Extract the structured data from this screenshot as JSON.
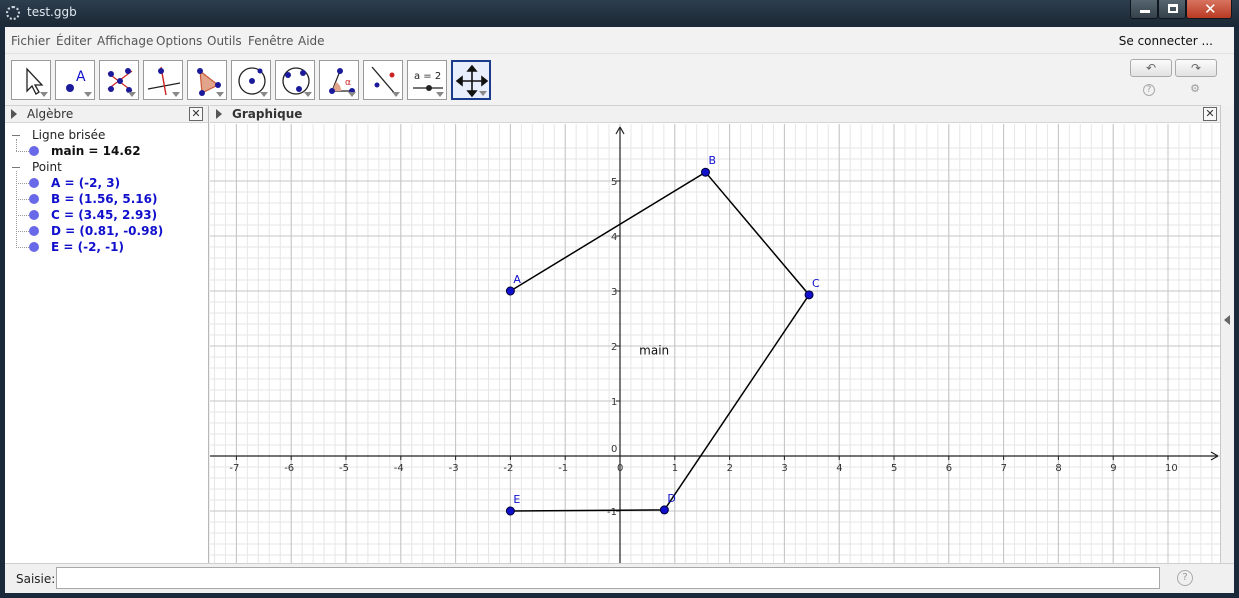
{
  "window": {
    "title": "test.ggb"
  },
  "menu": {
    "items": [
      "Fichier",
      "Éditer",
      "Affichage",
      "Options",
      "Outils",
      "Fenêtre",
      "Aide"
    ],
    "signin": "Se connecter ..."
  },
  "toolbar": {
    "tools": [
      {
        "name": "move-tool-icon"
      },
      {
        "name": "point-tool-icon",
        "label": "A"
      },
      {
        "name": "intersect-tool-icon"
      },
      {
        "name": "perpendicular-line-tool-icon"
      },
      {
        "name": "polygon-tool-icon"
      },
      {
        "name": "circle-tool-icon"
      },
      {
        "name": "circle-three-points-tool-icon"
      },
      {
        "name": "angle-tool-icon",
        "label": "α"
      },
      {
        "name": "reflect-tool-icon"
      },
      {
        "name": "slider-tool-icon",
        "label": "a = 2"
      },
      {
        "name": "move-graphics-view-tool-icon",
        "active": true
      }
    ],
    "undo_glyph": "↶",
    "redo_glyph": "↷",
    "help_glyph": "?",
    "settings_glyph": "⚙"
  },
  "algebra": {
    "title": "Algèbre",
    "groups": [
      {
        "label": "Ligne brisée",
        "items": [
          {
            "text": "main = 14.62",
            "color": "#111111"
          }
        ]
      },
      {
        "label": "Point",
        "items": [
          {
            "text": "A = (-2, 3)",
            "color": "#1010cc"
          },
          {
            "text": "B = (1.56, 5.16)",
            "color": "#1010cc"
          },
          {
            "text": "C = (3.45, 2.93)",
            "color": "#1010cc"
          },
          {
            "text": "D = (0.81, -0.98)",
            "color": "#1010cc"
          },
          {
            "text": "E = (-2, -1)",
            "color": "#1010cc"
          }
        ]
      }
    ]
  },
  "graphics": {
    "title": "Graphique",
    "polyline_label": "main",
    "polyline_label_pos": {
      "x": 0.35,
      "y": 1.85
    },
    "x_range": [
      -7.5,
      10.8
    ],
    "y_range": [
      -2,
      5.7
    ],
    "x_ticks": [
      -7,
      -6,
      -5,
      -4,
      -3,
      -2,
      -1,
      0,
      1,
      2,
      3,
      4,
      5,
      6,
      7,
      8,
      9,
      10
    ],
    "y_ticks": [
      -1,
      0,
      1,
      2,
      3,
      4,
      5
    ],
    "points": [
      {
        "name": "A",
        "x": -2,
        "y": 3
      },
      {
        "name": "B",
        "x": 1.56,
        "y": 5.16
      },
      {
        "name": "C",
        "x": 3.45,
        "y": 2.93
      },
      {
        "name": "D",
        "x": 0.81,
        "y": -0.98
      },
      {
        "name": "E",
        "x": -2,
        "y": -1
      }
    ],
    "point_color": "#1010cc",
    "line_color": "#000000"
  },
  "inputbar": {
    "label": "Saisie:",
    "value": "",
    "placeholder": "",
    "help_glyph": "?"
  }
}
